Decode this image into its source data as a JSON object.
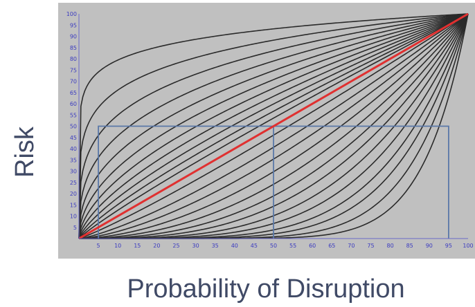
{
  "chart_data": {
    "type": "line",
    "title": "",
    "xlabel": "Probability of Disruption",
    "ylabel": "Risk",
    "xlim": [
      0,
      100
    ],
    "ylim": [
      0,
      100
    ],
    "x_ticks": [
      5,
      10,
      15,
      20,
      25,
      30,
      35,
      40,
      45,
      50,
      55,
      60,
      65,
      70,
      75,
      80,
      85,
      90,
      95,
      100
    ],
    "y_ticks": [
      5,
      10,
      15,
      20,
      25,
      30,
      35,
      40,
      45,
      50,
      55,
      60,
      65,
      70,
      75,
      80,
      85,
      90,
      95,
      100
    ],
    "grid": false,
    "legend": "none",
    "curve_family": {
      "color": "#2a2a2a",
      "endpoints": [
        [
          0,
          0
        ],
        [
          100,
          100
        ]
      ],
      "shape_exponents": [
        0.1,
        0.18,
        0.26,
        0.34,
        0.42,
        0.5,
        0.58,
        0.66,
        0.74,
        0.82,
        0.9,
        1.12,
        1.3,
        1.5,
        1.75,
        2.05,
        2.4,
        2.8,
        3.3,
        3.9,
        4.7,
        5.6,
        7.0,
        9.0
      ]
    },
    "series": [
      {
        "color": "#e03030",
        "x": [
          0,
          100
        ],
        "y": [
          0,
          100
        ]
      }
    ],
    "annotations": [
      {
        "color": "#5a78a8",
        "x": [
          5,
          5,
          95,
          95
        ],
        "y": [
          0,
          50,
          50,
          0
        ]
      },
      {
        "color": "#5a78a8",
        "x": [
          50,
          50
        ],
        "y": [
          0,
          50
        ]
      }
    ],
    "colors": {
      "plot_background": "#c0c0c0",
      "tick_labels": "#3a3ac0",
      "axis_titles": "#404a66"
    }
  }
}
